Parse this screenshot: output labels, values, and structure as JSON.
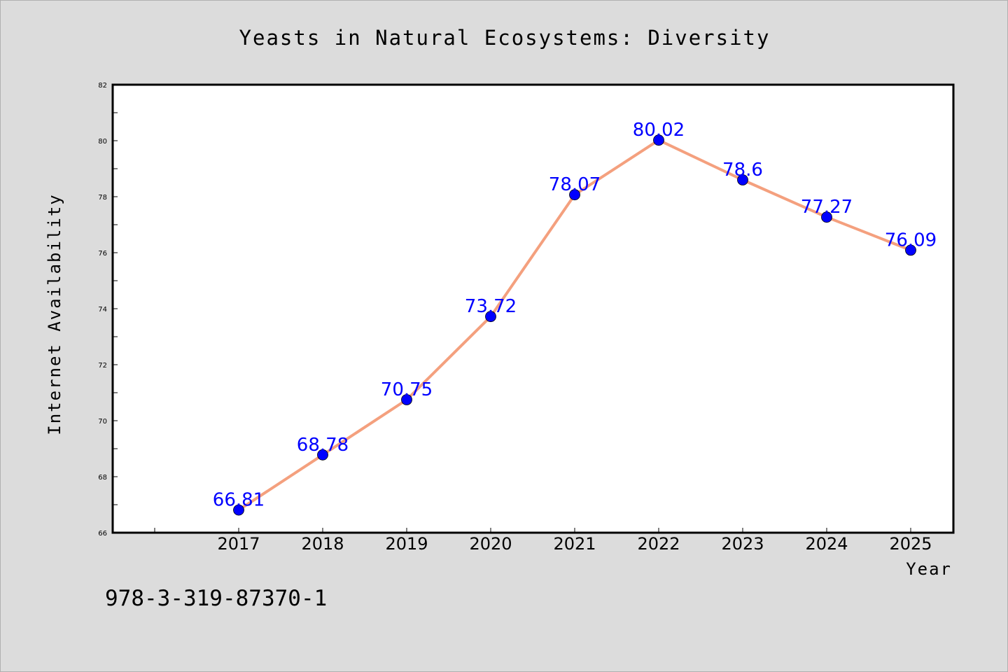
{
  "chart_data": {
    "type": "line",
    "title": "Yeasts in Natural Ecosystems: Diversity",
    "xlabel": "Year",
    "ylabel": "Internet Availability",
    "categories": [
      "2017",
      "2018",
      "2019",
      "2020",
      "2021",
      "2022",
      "2023",
      "2024",
      "2025"
    ],
    "series": [
      {
        "values": [
          66.81,
          68.78,
          70.75,
          73.72,
          78.07,
          80.02,
          78.6,
          77.27,
          76.09
        ],
        "data_labels": [
          "66.81",
          "68.78",
          "70.75",
          "73.72",
          "78.07",
          "80.02",
          "78.6",
          "77.27",
          "76.09"
        ]
      }
    ],
    "ylim": [
      66,
      82
    ],
    "yticks": [
      "66",
      "68",
      "70",
      "72",
      "74",
      "76",
      "78",
      "80",
      "82"
    ],
    "grid": false,
    "line_color": "#f4a07e",
    "marker_color": "#0000ff",
    "label_color": "#0000ff"
  },
  "footer": {
    "isbn": "978-3-319-87370-1"
  }
}
